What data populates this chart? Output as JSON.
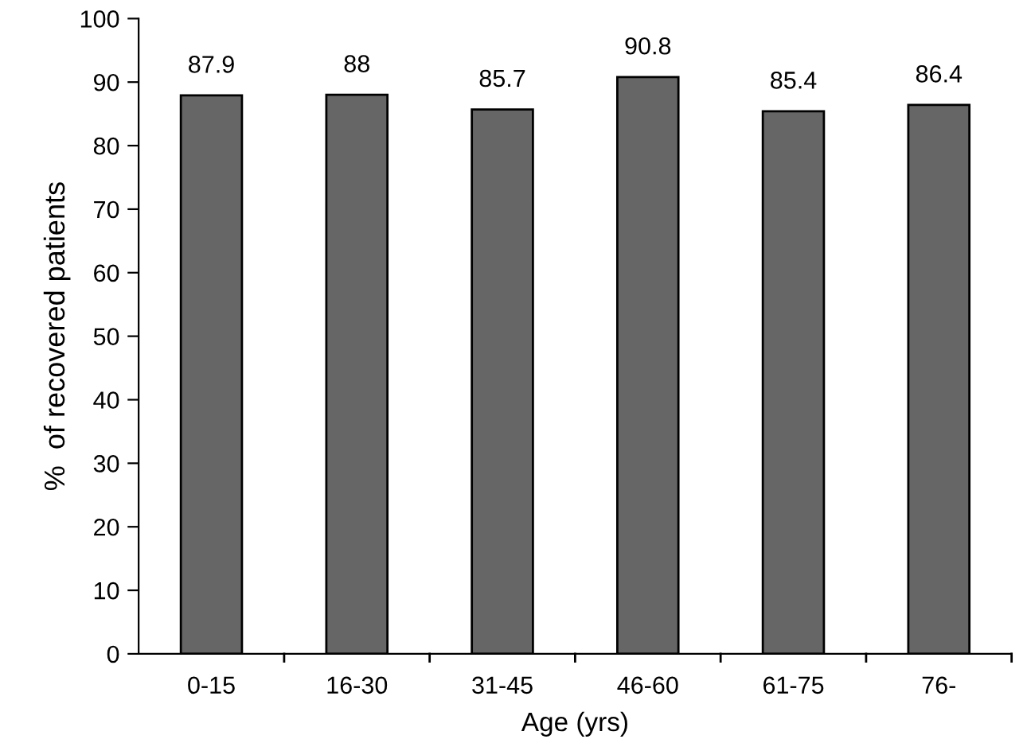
{
  "chart_data": {
    "type": "bar",
    "xlabel": "Age (yrs)",
    "ylabel": "%  of recovered patients",
    "categories": [
      "0-15",
      "16-30",
      "31-45",
      "46-60",
      "61-75",
      "76-"
    ],
    "values": [
      87.9,
      88,
      85.7,
      90.8,
      85.4,
      86.4
    ],
    "color": "#666666",
    "ylim": [
      0,
      100
    ],
    "yticks": [
      0,
      10,
      20,
      30,
      40,
      50,
      60,
      70,
      80,
      90,
      100
    ],
    "grid": false,
    "data_labels": true
  }
}
